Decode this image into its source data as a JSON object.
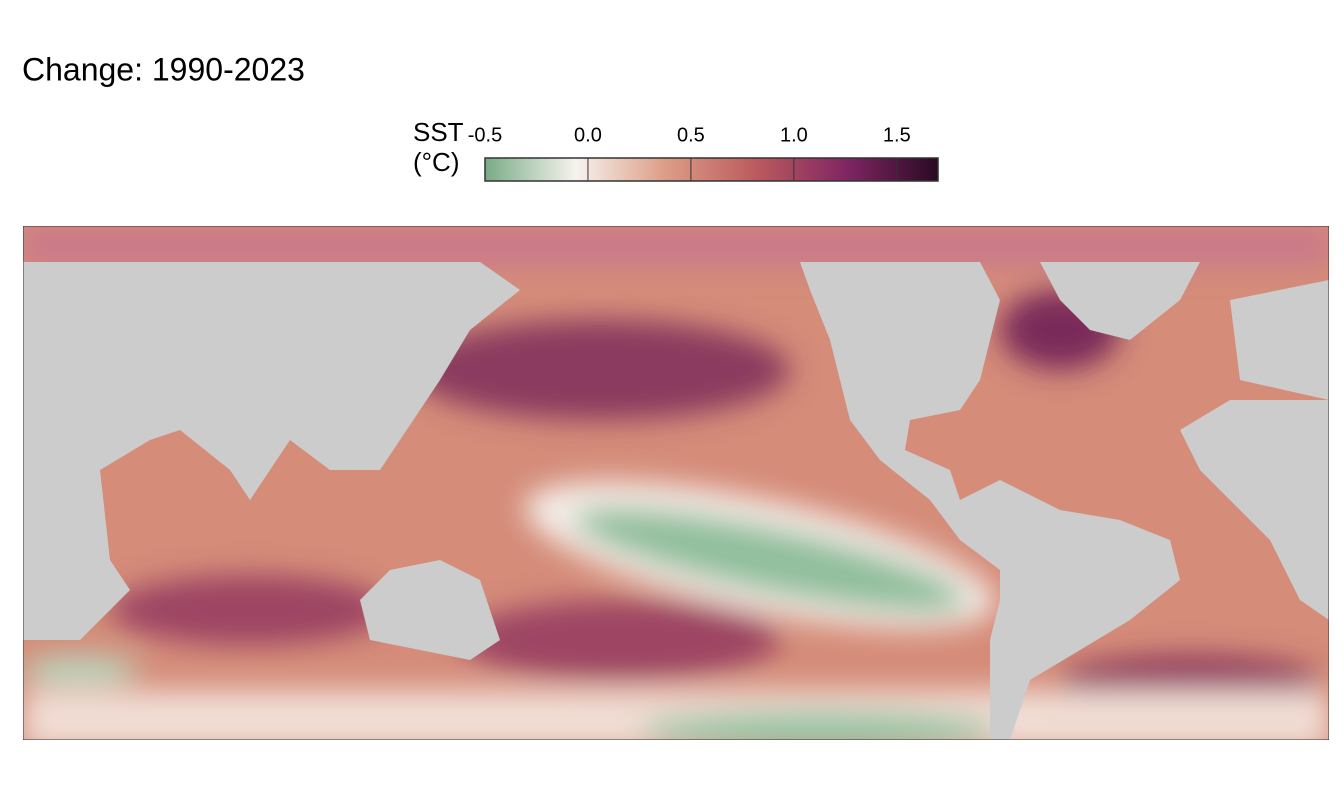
{
  "title": "Change:  1990-2023",
  "legend": {
    "title_lines": [
      "SST",
      "(°C)"
    ],
    "lim": [
      -0.5,
      1.7
    ],
    "ticks": [
      -0.5,
      {
        "value": 0,
        "label": "0.0"
      },
      0.5,
      {
        "value": 1,
        "label": "1.0"
      },
      1.5
    ],
    "colors": [
      "#79ab86",
      "#f6f3ee",
      "#dc9c86",
      "#bb5a5e",
      "#7f2563",
      "#2a0a22"
    ]
  }
}
